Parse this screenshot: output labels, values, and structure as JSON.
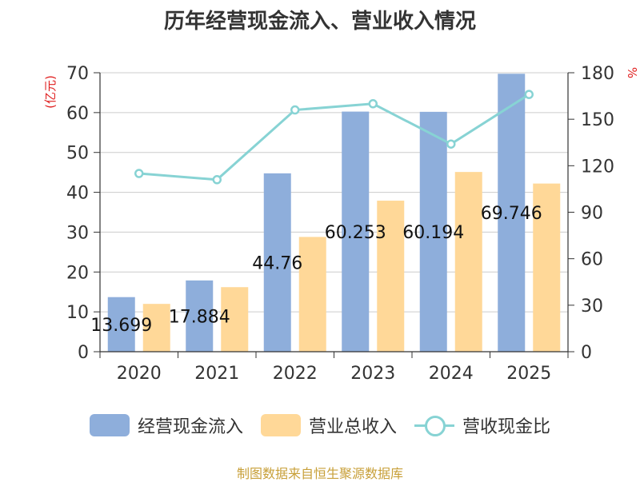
{
  "title": "历年经营现金流入、营业收入情况",
  "footer": "制图数据来自恒生聚源数据库",
  "chart_data": {
    "type": "bar",
    "categories": [
      "2020",
      "2021",
      "2022",
      "2023",
      "2024",
      "2025"
    ],
    "series": [
      {
        "name": "经营现金流入",
        "kind": "bar",
        "axis": "left",
        "color": "#8eaedb",
        "values": [
          13.699,
          17.884,
          44.76,
          60.253,
          60.194,
          69.746
        ],
        "labels": [
          "13.699",
          "17.884",
          "44.76",
          "60.253",
          "60.194",
          "69.746"
        ]
      },
      {
        "name": "营业总收入",
        "kind": "bar",
        "axis": "left",
        "color": "#ffd898",
        "values": [
          12,
          16.2,
          28.8,
          37.9,
          45.1,
          42.2
        ]
      },
      {
        "name": "营收现金比",
        "kind": "line",
        "axis": "right",
        "color": "#87d3d4",
        "values": [
          115,
          111,
          156,
          160,
          134,
          166
        ]
      }
    ],
    "y_left": {
      "label": "(亿元)",
      "min": 0,
      "max": 70,
      "ticks": [
        0,
        10,
        20,
        30,
        40,
        50,
        60,
        70
      ],
      "label_color": "#e02020"
    },
    "y_right": {
      "label": "%",
      "min": 0,
      "max": 180,
      "ticks": [
        0,
        30,
        60,
        90,
        120,
        150,
        180
      ],
      "label_color": "#e02020"
    },
    "grid": true,
    "legend": "bottom"
  }
}
